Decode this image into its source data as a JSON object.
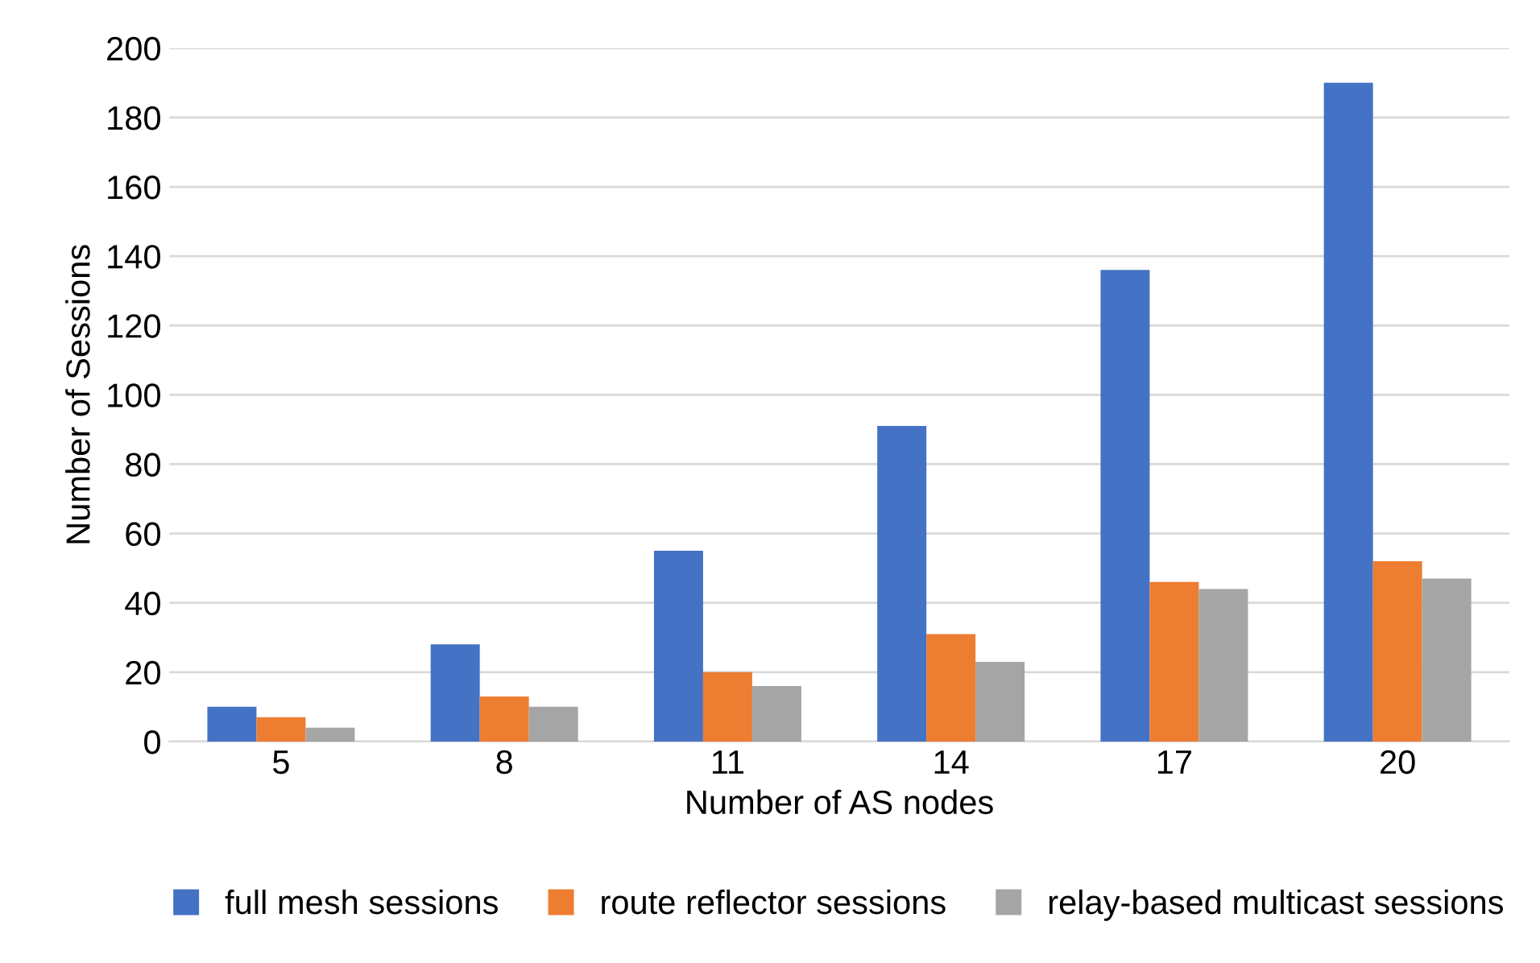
{
  "chart_data": {
    "type": "bar",
    "xlabel": "Number of AS nodes",
    "ylabel": "Number of Sessions",
    "categories": [
      "5",
      "8",
      "11",
      "14",
      "17",
      "20"
    ],
    "series": [
      {
        "name": "full mesh sessions",
        "color": "#4472c4",
        "values": [
          10,
          28,
          55,
          91,
          136,
          190
        ]
      },
      {
        "name": "route reflector sessions",
        "color": "#ed7d31",
        "values": [
          7,
          13,
          20,
          31,
          46,
          52
        ]
      },
      {
        "name": "relay-based multicast sessions",
        "color": "#a5a5a5",
        "values": [
          4,
          10,
          16,
          23,
          44,
          47
        ]
      }
    ],
    "ylim": [
      0,
      200
    ],
    "yticks": [
      0,
      20,
      40,
      60,
      80,
      100,
      120,
      140,
      160,
      180,
      200
    ],
    "grid": "y",
    "legend": "bottom"
  }
}
